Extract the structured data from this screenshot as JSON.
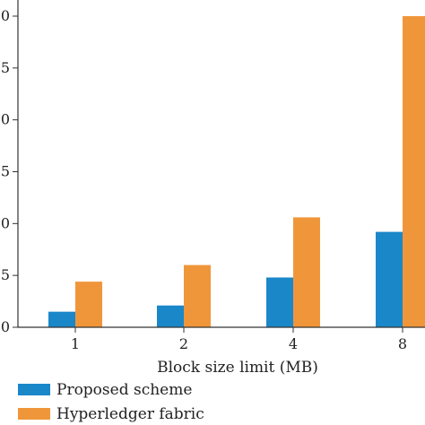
{
  "chart_data": {
    "type": "bar",
    "xlabel": "Block size limit (MB)",
    "ylabel": "",
    "categories": [
      "1",
      "2",
      "4",
      "8"
    ],
    "y_tick_labels": [
      "0",
      "5",
      "0",
      "5",
      "0",
      "5",
      "0"
    ],
    "ylim": [
      0,
      30
    ],
    "grid": false,
    "legend_position": "bottom-left",
    "series": [
      {
        "name": "Proposed scheme",
        "values": [
          1.5,
          2.1,
          4.8,
          9.2
        ],
        "color": "#1a87c9"
      },
      {
        "name": "Hyperledger fabric",
        "values": [
          4.4,
          6.0,
          10.6,
          30.0
        ],
        "color": "#f0963a"
      }
    ]
  }
}
